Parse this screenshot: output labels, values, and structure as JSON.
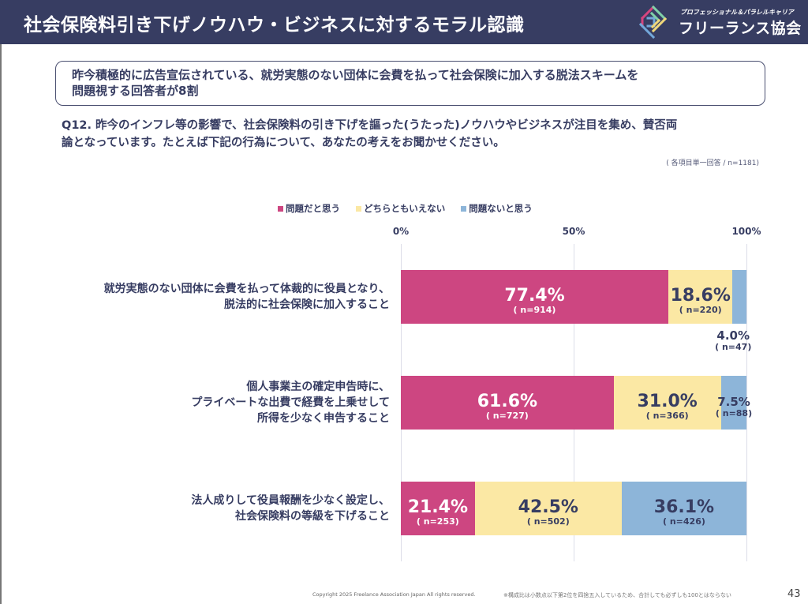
{
  "header": {
    "title": "社会保険料引き下げノウハウ・ビジネスに対するモラル認識",
    "logo_sub": "プロフェッショナル＆パラレルキャリア",
    "logo_main": "フリーランス協会"
  },
  "summary": {
    "line1": "昨今積極的に広告宣伝されている、就労実態のない団体に会費を払って社会保険に加入する脱法スキームを",
    "line2": "問題視する回答者が8割"
  },
  "question": {
    "line1": "Q12. 昨今のインフレ等の影響で、社会保険料の引き下げを謳った(うたった)ノウハウやビジネスが注目を集め、賛否両",
    "line2": "論となっています。たとえば下記の行為について、あなたの考えをお聞かせください。"
  },
  "sample_note": "( 各項目単一回答 / n=1181)",
  "chart_data": {
    "type": "bar",
    "orientation": "horizontal",
    "stacked": true,
    "title": "",
    "xlabel": "",
    "ylabel": "",
    "xlim": [
      0,
      100
    ],
    "x_ticks": [
      "0%",
      "50%",
      "100%"
    ],
    "grid": true,
    "legend_position": "top",
    "categories": [
      "就労実態のない団体に会費を払って体裁的に役員となり、\n脱法的に社会保険に加入すること",
      "個人事業主の確定申告時に、\nプライベートな出費で経費を上乗せして\n所得を少なく申告すること",
      "法人成りして役員報酬を少なく設定し、\n社会保険料の等級を下げること"
    ],
    "series": [
      {
        "name": "問題だと思う",
        "color": "#cd4681",
        "values": [
          77.4,
          61.6,
          21.4
        ],
        "counts": [
          914,
          727,
          253
        ]
      },
      {
        "name": "どちらともいえない",
        "color": "#fbe8a4",
        "values": [
          18.6,
          31.0,
          42.5
        ],
        "counts": [
          220,
          366,
          502
        ]
      },
      {
        "name": "問題ないと思う",
        "color": "#8db5d9",
        "values": [
          4.0,
          7.5,
          36.1
        ],
        "counts": [
          47,
          88,
          426
        ]
      }
    ]
  },
  "footer": {
    "copyright": "Copyright 2025 Freelance Association Japan  All rights reserved.",
    "note": "※構成比は小数点以下第2位を四捨五入しているため、合計しても必ずしも100とはならない",
    "page_number": "43"
  }
}
